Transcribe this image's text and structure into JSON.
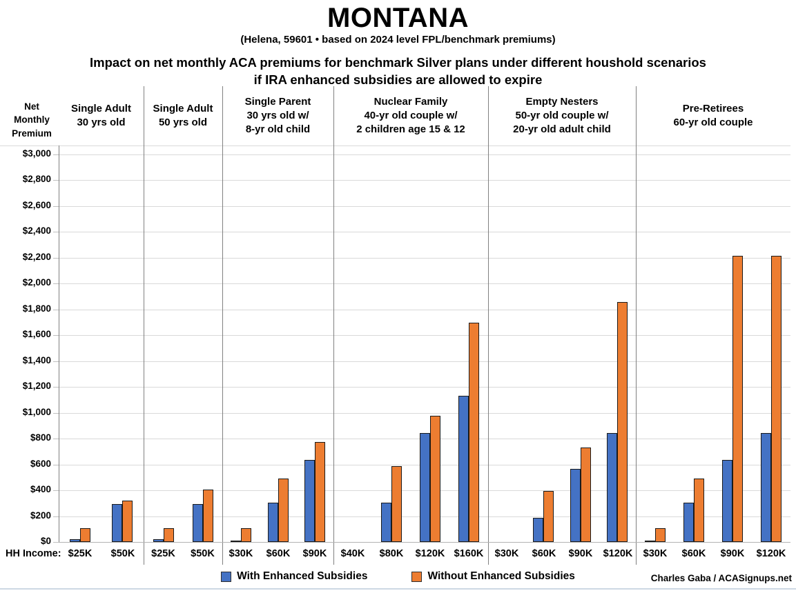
{
  "title": "MONTANA",
  "subtitle": "(Helena, 59601 • based on 2024 level FPL/benchmark premiums)",
  "heading_line1": "Impact on net monthly ACA premiums for benchmark Silver plans under different houshold scenarios",
  "heading_line2": "if IRA enhanced subsidies are allowed to expire",
  "y_axis_title": "Net Monthly Premium",
  "hh_income_label": "HH Income:",
  "credit": "Charles Gaba / ACASignups.net",
  "legend": [
    {
      "label": "With Enhanced Subsidies",
      "color": "#4472C4"
    },
    {
      "label": "Without Enhanced Subsidies",
      "color": "#ED7D31"
    }
  ],
  "chart_data": {
    "type": "bar",
    "title": "Impact on net monthly ACA premiums for benchmark Silver plans under different houshold scenarios if IRA enhanced subsidies are allowed to expire",
    "ylabel": "Net Monthly Premium",
    "ylim": [
      0,
      3000
    ],
    "ytick_step": 200,
    "grid": true,
    "legend_position": "bottom",
    "series_names": [
      "With Enhanced Subsidies",
      "Without Enhanced Subsidies"
    ],
    "colors": {
      "with_enhanced": "#4472C4",
      "without_enhanced": "#ED7D31"
    },
    "y_ticks": [
      "$0",
      "$200",
      "$400",
      "$600",
      "$800",
      "$1,000",
      "$1,200",
      "$1,400",
      "$1,600",
      "$1,800",
      "$2,000",
      "$2,200",
      "$2,400",
      "$2,600",
      "$2,800",
      "$3,000"
    ],
    "groups": [
      {
        "label": [
          "Single Adult",
          "30 yrs old"
        ],
        "incomes": [
          "$25K",
          "$50K"
        ],
        "with_enhanced": [
          20,
          295
        ],
        "without_enhanced": [
          105,
          320
        ]
      },
      {
        "label": [
          "Single Adult",
          "50 yrs old"
        ],
        "incomes": [
          "$25K",
          "$50K"
        ],
        "with_enhanced": [
          20,
          295
        ],
        "without_enhanced": [
          105,
          405
        ]
      },
      {
        "label": [
          "Single Parent",
          "30 yrs old w/",
          "8-yr old child"
        ],
        "incomes": [
          "$30K",
          "$60K",
          "$90K"
        ],
        "with_enhanced": [
          5,
          305,
          635
        ],
        "without_enhanced": [
          105,
          490,
          775
        ]
      },
      {
        "label": [
          "Nuclear Family",
          "40-yr old couple w/",
          "2 children age 15 & 12"
        ],
        "incomes": [
          "$40K",
          "$80K",
          "$120K",
          "$160K"
        ],
        "with_enhanced": [
          0,
          305,
          845,
          1130
        ],
        "without_enhanced": [
          0,
          585,
          975,
          1695
        ]
      },
      {
        "label": [
          "Empty Nesters",
          "50-yr old couple w/",
          "20-yr old adult child"
        ],
        "incomes": [
          "$30K",
          "$60K",
          "$90K",
          "$120K"
        ],
        "with_enhanced": [
          0,
          185,
          565,
          845
        ],
        "without_enhanced": [
          0,
          395,
          730,
          1855
        ]
      },
      {
        "label": [
          "Pre-Retirees",
          "60-yr old couple"
        ],
        "incomes": [
          "$30K",
          "$60K",
          "$90K",
          "$120K"
        ],
        "with_enhanced": [
          5,
          305,
          635,
          845
        ],
        "without_enhanced": [
          105,
          490,
          2215,
          2215
        ]
      }
    ]
  }
}
